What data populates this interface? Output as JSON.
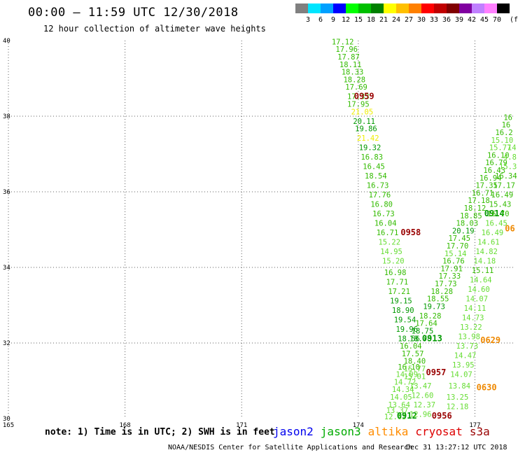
{
  "header": {
    "title": "00:00 – 11:59 UTC 12/30/2018",
    "subtitle": "12 hour collection of altimeter wave heights"
  },
  "colorbar": {
    "unit": "(ft)",
    "bins": [
      {
        "label": "3",
        "color": "#808080"
      },
      {
        "label": "6",
        "color": "#00e5ff"
      },
      {
        "label": "9",
        "color": "#00a0ff"
      },
      {
        "label": "12",
        "color": "#0000ff"
      },
      {
        "label": "15",
        "color": "#00ff00"
      },
      {
        "label": "18",
        "color": "#00c000"
      },
      {
        "label": "21",
        "color": "#008000"
      },
      {
        "label": "24",
        "color": "#ffff00"
      },
      {
        "label": "27",
        "color": "#ffc000"
      },
      {
        "label": "30",
        "color": "#ff8000"
      },
      {
        "label": "33",
        "color": "#ff0000"
      },
      {
        "label": "36",
        "color": "#c00000"
      },
      {
        "label": "39",
        "color": "#800000"
      },
      {
        "label": "42",
        "color": "#8000a0"
      },
      {
        "label": "45",
        "color": "#c080ff"
      },
      {
        "label": "70",
        "color": "#ff80ff"
      },
      {
        "label": "",
        "color": "#000000"
      }
    ]
  },
  "chart_data": {
    "type": "scatter",
    "title": "00:00 – 11:59 UTC 12/30/2018",
    "subtitle": "12 hour collection of altimeter wave heights",
    "xlim": [
      165,
      178
    ],
    "ylim": [
      30,
      40
    ],
    "x_ticks": [
      165,
      168,
      171,
      174,
      177
    ],
    "y_ticks": [
      30,
      32,
      34,
      36,
      38,
      40
    ],
    "grid": true,
    "colors": {
      "grid": "#606060",
      "light_green": "#66dd33",
      "mid_green": "#33bb00",
      "dark_green": "#009900",
      "yellow": "#eeee00",
      "maroon": "#990000",
      "orange": "#ee8800"
    },
    "tracks": [
      {
        "satellite": "jason3",
        "points": [
          {
            "lon": 173.6,
            "lat": 39.9,
            "v": "17.12",
            "c": "mid_green"
          },
          {
            "lon": 173.7,
            "lat": 39.7,
            "v": "17.96",
            "c": "mid_green"
          },
          {
            "lon": 173.75,
            "lat": 39.5,
            "v": "17.87",
            "c": "mid_green"
          },
          {
            "lon": 173.8,
            "lat": 39.3,
            "v": "18.11",
            "c": "mid_green"
          },
          {
            "lon": 173.85,
            "lat": 39.1,
            "v": "18.33",
            "c": "mid_green"
          },
          {
            "lon": 173.9,
            "lat": 38.9,
            "v": "18.28",
            "c": "mid_green"
          },
          {
            "lon": 173.95,
            "lat": 38.7,
            "v": "17.69",
            "c": "mid_green"
          },
          {
            "lon": 174.0,
            "lat": 38.45,
            "v": "17.33",
            "c": "mid_green"
          },
          {
            "lon": 174.0,
            "lat": 38.25,
            "v": "17.95",
            "c": "mid_green"
          },
          {
            "lon": 174.1,
            "lat": 38.05,
            "v": "21.05",
            "c": "yellow"
          },
          {
            "lon": 174.15,
            "lat": 37.8,
            "v": "20.11",
            "c": "dark_green"
          },
          {
            "lon": 174.2,
            "lat": 37.6,
            "v": "19.86",
            "c": "dark_green"
          },
          {
            "lon": 174.25,
            "lat": 37.35,
            "v": "21.42",
            "c": "yellow"
          },
          {
            "lon": 174.3,
            "lat": 37.1,
            "v": "19.32",
            "c": "dark_green"
          },
          {
            "lon": 174.35,
            "lat": 36.85,
            "v": "16.83",
            "c": "mid_green"
          },
          {
            "lon": 174.4,
            "lat": 36.6,
            "v": "16.45",
            "c": "mid_green"
          },
          {
            "lon": 174.45,
            "lat": 36.35,
            "v": "18.54",
            "c": "mid_green"
          },
          {
            "lon": 174.5,
            "lat": 36.1,
            "v": "16.73",
            "c": "mid_green"
          },
          {
            "lon": 174.55,
            "lat": 35.85,
            "v": "17.76",
            "c": "mid_green"
          },
          {
            "lon": 174.6,
            "lat": 35.6,
            "v": "16.80",
            "c": "mid_green"
          },
          {
            "lon": 174.65,
            "lat": 35.35,
            "v": "16.73",
            "c": "mid_green"
          },
          {
            "lon": 174.7,
            "lat": 35.1,
            "v": "16.04",
            "c": "mid_green"
          },
          {
            "lon": 174.75,
            "lat": 34.85,
            "v": "16.71",
            "c": "mid_green"
          },
          {
            "lon": 174.8,
            "lat": 34.6,
            "v": "15.22",
            "c": "light_green"
          },
          {
            "lon": 174.85,
            "lat": 34.35,
            "v": "14.95",
            "c": "light_green"
          },
          {
            "lon": 174.9,
            "lat": 34.1,
            "v": "15.20",
            "c": "light_green"
          },
          {
            "lon": 174.95,
            "lat": 33.8,
            "v": "16.98",
            "c": "mid_green"
          },
          {
            "lon": 175.0,
            "lat": 33.55,
            "v": "17.71",
            "c": "mid_green"
          },
          {
            "lon": 175.05,
            "lat": 33.3,
            "v": "17.21",
            "c": "mid_green"
          },
          {
            "lon": 175.1,
            "lat": 33.05,
            "v": "19.15",
            "c": "dark_green"
          },
          {
            "lon": 175.15,
            "lat": 32.8,
            "v": "18.90",
            "c": "dark_green"
          },
          {
            "lon": 175.2,
            "lat": 32.55,
            "v": "19.54",
            "c": "dark_green"
          },
          {
            "lon": 175.25,
            "lat": 32.3,
            "v": "19.96",
            "c": "dark_green"
          },
          {
            "lon": 175.3,
            "lat": 32.05,
            "v": "18.56",
            "c": "dark_green"
          },
          {
            "lon": 175.35,
            "lat": 31.85,
            "v": "16.04",
            "c": "mid_green"
          },
          {
            "lon": 175.4,
            "lat": 31.65,
            "v": "17.57",
            "c": "mid_green"
          },
          {
            "lon": 175.45,
            "lat": 31.45,
            "v": "18.40",
            "c": "mid_green"
          },
          {
            "lon": 175.3,
            "lat": 31.3,
            "v": "16.10",
            "c": "mid_green"
          },
          {
            "lon": 175.25,
            "lat": 31.1,
            "v": "14.99",
            "c": "light_green"
          },
          {
            "lon": 175.2,
            "lat": 30.9,
            "v": "14.72",
            "c": "light_green"
          },
          {
            "lon": 175.15,
            "lat": 30.7,
            "v": "14.34",
            "c": "light_green"
          },
          {
            "lon": 175.1,
            "lat": 30.5,
            "v": "14.05",
            "c": "light_green"
          },
          {
            "lon": 175.05,
            "lat": 30.3,
            "v": "13.64",
            "c": "light_green"
          },
          {
            "lon": 175.0,
            "lat": 30.15,
            "v": "13.37",
            "c": "light_green"
          },
          {
            "lon": 174.95,
            "lat": 29.98,
            "v": "12.63",
            "c": "light_green"
          }
        ],
        "time_labels": [
          {
            "lon": 174.15,
            "lat": 38.45,
            "t": "0959",
            "c": "maroon"
          },
          {
            "lon": 175.35,
            "lat": 34.85,
            "t": "0958",
            "c": "maroon"
          },
          {
            "lon": 175.25,
            "lat": 30.0,
            "t": "0912",
            "c": "dark_green"
          }
        ]
      },
      {
        "satellite": "jason3-ascending",
        "points": [
          {
            "lon": 175.6,
            "lat": 32.05,
            "v": "18.78",
            "c": "dark_green"
          },
          {
            "lon": 175.65,
            "lat": 32.25,
            "v": "18.75",
            "c": "dark_green"
          },
          {
            "lon": 175.75,
            "lat": 32.45,
            "v": "17.64",
            "c": "mid_green"
          },
          {
            "lon": 175.85,
            "lat": 32.65,
            "v": "18.28",
            "c": "mid_green"
          },
          {
            "lon": 175.95,
            "lat": 32.9,
            "v": "19.73",
            "c": "dark_green"
          },
          {
            "lon": 176.05,
            "lat": 33.1,
            "v": "18.55",
            "c": "mid_green"
          },
          {
            "lon": 176.15,
            "lat": 33.3,
            "v": "18.28",
            "c": "mid_green"
          },
          {
            "lon": 176.25,
            "lat": 33.5,
            "v": "17.73",
            "c": "mid_green"
          },
          {
            "lon": 176.35,
            "lat": 33.7,
            "v": "17.33",
            "c": "mid_green"
          },
          {
            "lon": 176.4,
            "lat": 33.9,
            "v": "17.91",
            "c": "mid_green"
          },
          {
            "lon": 176.45,
            "lat": 34.1,
            "v": "16.76",
            "c": "mid_green"
          },
          {
            "lon": 176.5,
            "lat": 34.3,
            "v": "15.14",
            "c": "light_green"
          },
          {
            "lon": 176.55,
            "lat": 34.5,
            "v": "17.70",
            "c": "mid_green"
          },
          {
            "lon": 176.6,
            "lat": 34.7,
            "v": "17.45",
            "c": "mid_green"
          },
          {
            "lon": 176.7,
            "lat": 34.9,
            "v": "20.19",
            "c": "dark_green"
          },
          {
            "lon": 176.8,
            "lat": 35.1,
            "v": "18.03",
            "c": "mid_green"
          },
          {
            "lon": 176.9,
            "lat": 35.3,
            "v": "18.85",
            "c": "mid_green"
          },
          {
            "lon": 177.0,
            "lat": 35.5,
            "v": "18.12",
            "c": "mid_green"
          },
          {
            "lon": 177.1,
            "lat": 35.7,
            "v": "17.18",
            "c": "mid_green"
          },
          {
            "lon": 177.2,
            "lat": 35.9,
            "v": "16.71",
            "c": "mid_green"
          },
          {
            "lon": 177.3,
            "lat": 36.1,
            "v": "17.35",
            "c": "mid_green"
          },
          {
            "lon": 177.4,
            "lat": 36.3,
            "v": "16.94",
            "c": "mid_green"
          },
          {
            "lon": 177.5,
            "lat": 36.5,
            "v": "16.43",
            "c": "mid_green"
          },
          {
            "lon": 177.55,
            "lat": 36.7,
            "v": "16.79",
            "c": "mid_green"
          },
          {
            "lon": 177.6,
            "lat": 36.9,
            "v": "16.10",
            "c": "mid_green"
          },
          {
            "lon": 177.65,
            "lat": 37.1,
            "v": "15.77",
            "c": "light_green"
          },
          {
            "lon": 177.7,
            "lat": 37.3,
            "v": "15.10",
            "c": "light_green"
          },
          {
            "lon": 177.75,
            "lat": 37.5,
            "v": "16.2",
            "c": "mid_green"
          },
          {
            "lon": 177.8,
            "lat": 37.7,
            "v": "16",
            "c": "mid_green"
          },
          {
            "lon": 177.85,
            "lat": 37.9,
            "v": "16",
            "c": "mid_green"
          }
        ],
        "time_labels": [
          {
            "lon": 175.9,
            "lat": 32.05,
            "t": "0913",
            "c": "dark_green"
          },
          {
            "lon": 177.5,
            "lat": 35.35,
            "t": "0914",
            "c": "dark_green"
          }
        ]
      },
      {
        "satellite": "jason3-south",
        "points": [
          {
            "lon": 175.45,
            "lat": 31.25,
            "v": "15.77",
            "c": "light_green"
          },
          {
            "lon": 175.45,
            "lat": 31.05,
            "v": "15.01",
            "c": "light_green"
          },
          {
            "lon": 175.6,
            "lat": 30.8,
            "v": "13.47",
            "c": "light_green"
          },
          {
            "lon": 175.65,
            "lat": 30.55,
            "v": "12.60",
            "c": "light_green"
          },
          {
            "lon": 175.7,
            "lat": 30.3,
            "v": "12.37",
            "c": "light_green"
          },
          {
            "lon": 175.6,
            "lat": 30.05,
            "v": "12.96",
            "c": "light_green"
          }
        ],
        "time_labels": [
          {
            "lon": 176.0,
            "lat": 31.15,
            "t": "0957",
            "c": "maroon"
          },
          {
            "lon": 176.15,
            "lat": 30.0,
            "t": "0956",
            "c": "maroon"
          }
        ]
      },
      {
        "satellite": "altika",
        "points": [
          {
            "lon": 176.55,
            "lat": 30.25,
            "v": "12.18",
            "c": "light_green"
          },
          {
            "lon": 176.55,
            "lat": 30.5,
            "v": "13.25",
            "c": "light_green"
          },
          {
            "lon": 176.6,
            "lat": 30.8,
            "v": "13.84",
            "c": "light_green"
          },
          {
            "lon": 176.65,
            "lat": 31.1,
            "v": "14.07",
            "c": "light_green"
          },
          {
            "lon": 176.7,
            "lat": 31.35,
            "v": "13.95",
            "c": "light_green"
          },
          {
            "lon": 176.75,
            "lat": 31.6,
            "v": "14.47",
            "c": "light_green"
          },
          {
            "lon": 176.8,
            "lat": 31.85,
            "v": "13.73",
            "c": "light_green"
          },
          {
            "lon": 176.85,
            "lat": 32.1,
            "v": "13.98",
            "c": "light_green"
          },
          {
            "lon": 176.9,
            "lat": 32.35,
            "v": "13.22",
            "c": "light_green"
          },
          {
            "lon": 176.95,
            "lat": 32.6,
            "v": "14.73",
            "c": "light_green"
          },
          {
            "lon": 177.0,
            "lat": 32.85,
            "v": "14.11",
            "c": "light_green"
          },
          {
            "lon": 177.05,
            "lat": 33.1,
            "v": "14.07",
            "c": "light_green"
          },
          {
            "lon": 177.1,
            "lat": 33.35,
            "v": "14.60",
            "c": "light_green"
          },
          {
            "lon": 177.15,
            "lat": 33.6,
            "v": "14.64",
            "c": "light_green"
          },
          {
            "lon": 177.2,
            "lat": 33.85,
            "v": "15.11",
            "c": "mid_green"
          },
          {
            "lon": 177.25,
            "lat": 34.1,
            "v": "14.18",
            "c": "light_green"
          },
          {
            "lon": 177.3,
            "lat": 34.35,
            "v": "14.82",
            "c": "light_green"
          },
          {
            "lon": 177.35,
            "lat": 34.6,
            "v": "14.61",
            "c": "light_green"
          },
          {
            "lon": 177.45,
            "lat": 34.85,
            "v": "16.49",
            "c": "light_green"
          },
          {
            "lon": 177.55,
            "lat": 35.1,
            "v": "16.45",
            "c": "light_green"
          },
          {
            "lon": 177.6,
            "lat": 35.35,
            "v": "16.70",
            "c": "mid_green"
          },
          {
            "lon": 177.65,
            "lat": 35.6,
            "v": "15.43",
            "c": "mid_green"
          },
          {
            "lon": 177.7,
            "lat": 35.85,
            "v": "16.49",
            "c": "mid_green"
          },
          {
            "lon": 177.75,
            "lat": 36.1,
            "v": "17.17",
            "c": "mid_green"
          },
          {
            "lon": 177.8,
            "lat": 36.35,
            "v": "16.34",
            "c": "mid_green"
          },
          {
            "lon": 177.85,
            "lat": 36.6,
            "v": "15.3",
            "c": "light_green"
          },
          {
            "lon": 177.9,
            "lat": 36.85,
            "v": "4.8",
            "c": "light_green"
          },
          {
            "lon": 177.95,
            "lat": 37.1,
            "v": "14",
            "c": "light_green"
          }
        ],
        "time_labels": [
          {
            "lon": 177.4,
            "lat": 32.0,
            "t": "0629",
            "c": "orange"
          },
          {
            "lon": 177.3,
            "lat": 30.75,
            "t": "0630",
            "c": "orange"
          },
          {
            "lon": 177.9,
            "lat": 34.95,
            "t": "06",
            "c": "orange"
          }
        ]
      }
    ]
  },
  "footer": {
    "note": "note: 1) Time is in UTC; 2) SWH is in feet",
    "credit": "NOAA/NESDIS Center for Satellite Applications and Research",
    "timestamp": "Dec 31 13:27:12 UTC 2018",
    "satellites": [
      {
        "name": "jason2",
        "color": "#0000ee"
      },
      {
        "name": "jason3",
        "color": "#00aa00"
      },
      {
        "name": "altika",
        "color": "#ff8c00"
      },
      {
        "name": "cryosat",
        "color": "#dd0000"
      },
      {
        "name": "s3a",
        "color": "#990000"
      }
    ]
  }
}
